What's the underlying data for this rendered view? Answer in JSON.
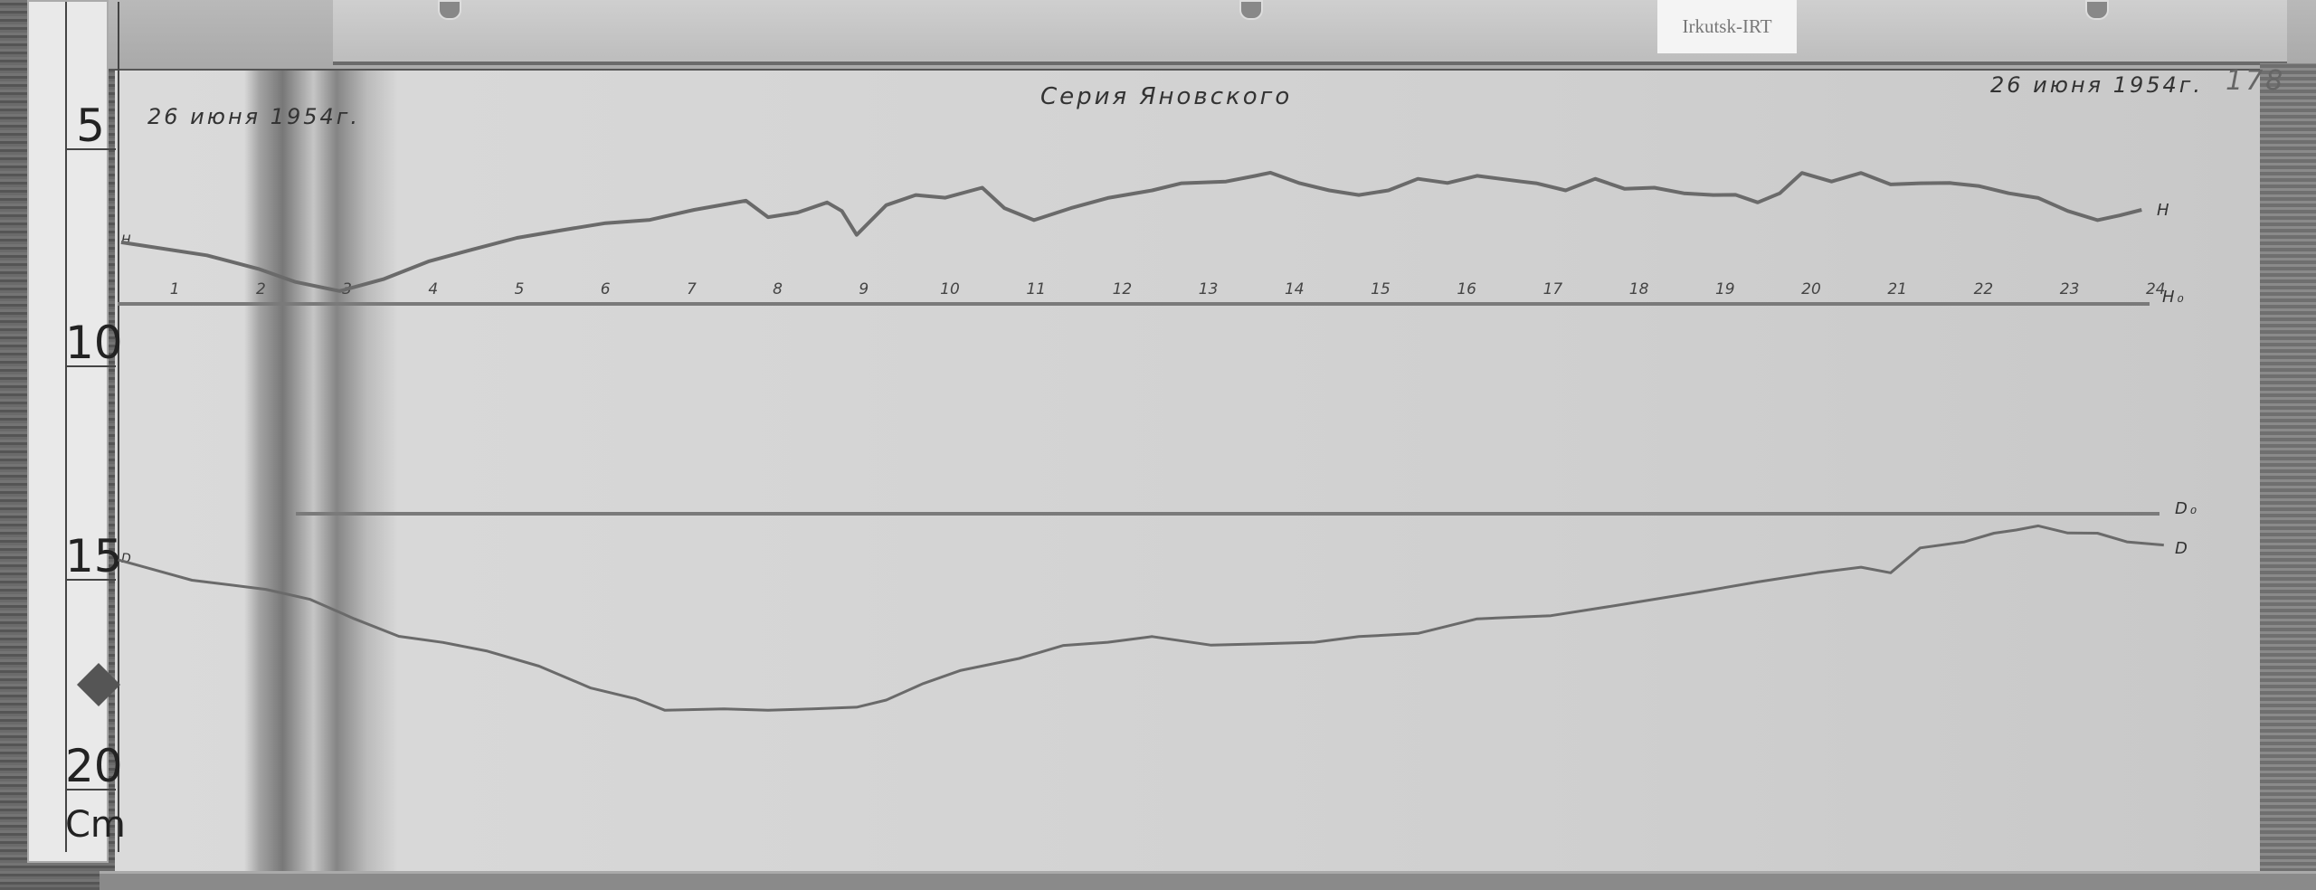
{
  "ruler": {
    "marks": [
      "5",
      "10",
      "15",
      "20"
    ],
    "unit": "Cm"
  },
  "tag": "Irkutsk-IRT",
  "header": {
    "date_left": "26 июня 1954г.",
    "title": "Серия Яновского",
    "date_right": "26 июня 1954г.",
    "sheet_number": "178"
  },
  "hours": [
    "1",
    "2",
    "3",
    "4",
    "5",
    "6",
    "7",
    "8",
    "9",
    "10",
    "11",
    "12",
    "13",
    "14",
    "15",
    "16",
    "17",
    "18",
    "19",
    "20",
    "21",
    "22",
    "23",
    "24"
  ],
  "traces": {
    "h_label": "H",
    "h0_label": "H₀",
    "d0_label": "D₀",
    "d_label": "D",
    "h_left_label": "H",
    "d_left_label": "D"
  },
  "colors": {
    "paper": "#d4d4d4",
    "trace": "#6a6a6a",
    "ink": "#333333"
  }
}
